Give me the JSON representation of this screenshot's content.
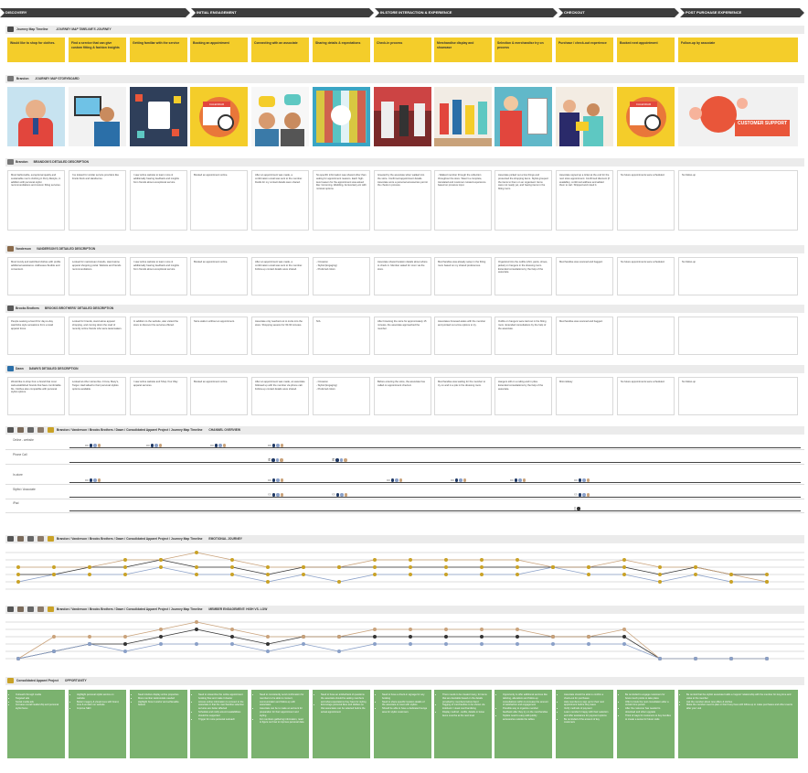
{
  "phases": [
    "DISCOVERY",
    "INITIAL ENGAGEMENT",
    "IN-STORE INTERACTION & EXPERIENCE",
    "CHECKOUT",
    "POST PURCHASE EXPERIENCE"
  ],
  "timeline_header": {
    "name": "Journey Map Timeline",
    "title": "JOURNEY MAP TIMELINE'S JOURNEY"
  },
  "steps": [
    "Would like to shop for clothes.",
    "Find a service that can give custom fitting & fashion insights",
    "Getting familiar with the service",
    "Booking an appointment",
    "Connecting with an associate",
    "Sharing details & expectations",
    "Check-in process",
    "Merchandise display and showcase",
    "Selection & merchandise try on process",
    "Purchase / check-out experience",
    "Booked next appointment",
    "Follow-up by associate"
  ],
  "storyboard_header": {
    "name": "Brandon",
    "title": "JOURNEY MAP STORYBOARD"
  },
  "images": [
    {
      "caption": ""
    },
    {
      "caption": ""
    },
    {
      "caption": ""
    },
    {
      "caption": "CALENDAR"
    },
    {
      "caption": ""
    },
    {
      "caption": ""
    },
    {
      "caption": ""
    },
    {
      "caption": ""
    },
    {
      "caption": ""
    },
    {
      "caption": ""
    },
    {
      "caption": "CALENDAR"
    },
    {
      "caption": "CUSTOMER SUPPORT"
    }
  ],
  "personas": [
    {
      "name": "Brandon",
      "title": "BRANDON'S DETAILED DESCRIPTION",
      "cells": [
        "Most fashionable, exceptional quality and sustainable men's clothing in Flory lifestyle, in addition with personal stylist recommendations and custom fitting services.",
        "I've looked for similar service providers like Frank Duck and Handsome.",
        "I saw online website to learn more & additionally hearing feedback and insights from friends about exceptional service.",
        "Booked an appointment online.",
        "After an appointment was made, a confirmation email was sent to the member. Fields for my contact details were shared.",
        "No specific information was shared other than asking for appointment reasons. Each high-level reason for the appointment was asked like: Grooming, Wedding, Anniversary etc with minimal options.",
        "Greeted by the associate when walked into the store. Confirmed appointment details. Associate wore a personal accessories permit the check-in process.",
        "- Walked member through the collection throughout the store. Wasn't a complete, translated and customer curated experience based on previous input.",
        "Associate picked out a few things and presented the shopping items. Stylist grouped the items to them on an organised. Items were not ready yet, and having items in the fitting room.",
        "Associate signed up a ticket at the end for the next store appointment. Confirmed discount (if available), confirmed address and added them to cart. Shipped and noted it.",
        "No future appointments were scheduled.",
        "No follow-up"
      ]
    },
    {
      "name": "Vanderson",
      "title": "VANDERSON'S DETAILED DESCRIPTION",
      "cells": [
        "Most trendy and well-fitted clothes with profile additional assistance. Addresses flexible and convenient.",
        "Looked for mainstream brands, stand alone apparel shopping portal. Website and friends recommendations.",
        "I saw online website to learn more & additionally hearing feedback and insights from friends about exceptional service.",
        "Booked an appointment online.",
        "After an appointment was made, a confirmation email was sent to the member. Follow-up contact details were shared.",
        "- Occasion\n- Stylist (Engaging)\n- Preferred colors",
        "Associate shared location details about where to check in. Member asked for room via the store.",
        "Merchandise was already setup in the fitting room based on my shared preferences.",
        "Organized into the outfits (shirt, pants, shoes, jacket) on hangers in the dressing room. Extended consultations by the help of the associate.",
        "Merchandise was scanned and bagged.",
        "No future appointments were scheduled.",
        "No follow-up"
      ]
    },
    {
      "name": "Brooks Brothers",
      "title": "BROOKS BROTHERS' DETAILED DESCRIPTION",
      "cells": [
        "People seeking a fast-fit for day-to-day wardrobe style sensations from a retail apparel focus.",
        "Looked for brands, stand alone apparel shopping, and coming down the road of recently online friends who were tastemakers.",
        "In addition to the website, also visited the store to discover the services offered.",
        "Store walk-in without an appointment.",
        "Associate only reached out to invite into the store. Shopping session for 60-90 minutes.",
        "N/A",
        "After browsing the store for approximately 15 minutes, the associate approached the member.",
        "Associates browsed aisles with the member and pointed out a few options to try.",
        "Outfits on hangers were laid out in the fitting room. Extended consultations by the help of the associate.",
        "Merchandise was scanned and bagged.",
        "",
        ""
      ]
    },
    {
      "name": "Dawn",
      "title": "DAWN'S DETAILED DESCRIPTION",
      "cells": [
        "Would like to shop from a brand that most well-established brands that have comfortable fits. Clothes also compatible with personal stylist options.",
        "Looked at other stores like J.Crew, Macy's, Target. Had talked to their personal stylists options available.",
        "I saw online website and Shop Your Way apparel services.",
        "Booked an appointment online.",
        "After an appointment was made, an associate followed up with the member via phone call. Follow-up contact details were shared.",
        "- Occasion\n- Stylist (Engaging)\n- Preferred colors",
        "Before entering the store, the associate has called on appointment check-in.",
        "Merchandise was waiting for the member to try on and in a pile in the dressing room.",
        "Hangers still on a railing and in piles. Extended consultations by the help of the associate.",
        "Mid-midway",
        "No future appointments were scheduled.",
        "No follow-up"
      ]
    }
  ],
  "channel": {
    "crumb": "Brandon / Vanderson / Brooks Brothers / Dawn / Consolidated Apparel Project / Journey Map Timeline",
    "title": "CHANNEL OVERVIEW",
    "rows": [
      {
        "label": "Online - website"
      },
      {
        "label": "Phone Call"
      },
      {
        "label": "In-store"
      },
      {
        "label": "Stylist / Associate"
      },
      {
        "label": "iPad"
      }
    ]
  },
  "emotional": {
    "crumb": "Brandon / Vanderson / Brooks Brothers / Dawn / Consolidated Apparel Project / Journey Map Timeline",
    "title": "EMOTIONAL JOURNEY"
  },
  "moments": {
    "crumb": "Brandon / Vanderson / Brooks Brothers / Dawn / Consolidated Apparel Project / Journey Map Timeline",
    "title": "MEMBER ENGAGEMENT: HIGH VS. LOW"
  },
  "opportunity": {
    "name": "Consolidated Apparel Project",
    "title": "OPPORTUNITY",
    "cells": [
      [
        "Outreach through media",
        "Targeted ads",
        "Social media ads",
        "Increase overall readership and personal stylist focus"
      ],
      [
        "Highlight personal stylist service on website",
        "Better imagery & visual cues with brand, tone & emotion on website",
        "Improve SEO"
      ],
      [
        "Need intuitive display online properties",
        "More member testimonials needed",
        "Highlight 'How it works' and achievable feature"
      ],
      [
        "Need to streamline the online appointment booking flow and make it clearer",
        "Access online information to connect to the associate or that the merchandise selection services are better affected",
        "Schedule and notify around availabilities should be supported",
        "Trigger for more personal outreach"
      ],
      [
        "Need to consistently send confirmation for members to be able to connect, communication and follow-up with associates",
        "Associate can be to make an account for preparation for their appointment and styling",
        "For members gathering information, need to figure out how to improve personal data"
      ],
      [
        "Need to have an article/bank of questions the associate should be asking members and what expectations they have for styling",
        "Encourage personal likes and dislikes so that associates can be selected before the actual appointment"
      ],
      [
        "Need to have a check-in signage for any booking",
        "Need to share specific location details of the associate to meet with stylists",
        "Should be able to have a dedicated lounge area for stylist customers"
      ],
      [
        "There needs to be created many, for items that are desirable based on the details provided by members before hand",
        "Tagging of merchandise to be shown via lookbook / visual merchandising",
        "Display method - outfits, details or loose items must be at the next level"
      ],
      [
        "Opportunity to offer additional services like tailoring, alterations and follow-up consultations within to increase the amount of satisfaction and engagement",
        "Possible way to organize member feedback after they try on the merchandise",
        "Stylists need to easy add quickly accessories outside the tables"
      ],
      [
        "Associate should be able to confirm a check-out for purchases",
        "Help members to sign up for their next appointment before they leave",
        "Verify methods of payment",
        "Learn member's happy with their selection and offer assistance for payment options",
        "Be reminded of the amount of key customers"
      ],
      [
        "Be reminded to engage customers for future touch points to take place",
        "Offer to book the next consultation after a certain time period",
        "After the customer has needed to download and other upgrade",
        "Think of ways for customers to buy bundles to create a sense for future visits"
      ],
      [
        "Be remind that the stylist/ associate builds a 'rapport' relationship with the member for long time and value to the member",
        "Ask the member about new offers & clothes",
        "Make the member need to plan or their busy lives with follow-up to make purchases and other events after your visit"
      ]
    ]
  }
}
